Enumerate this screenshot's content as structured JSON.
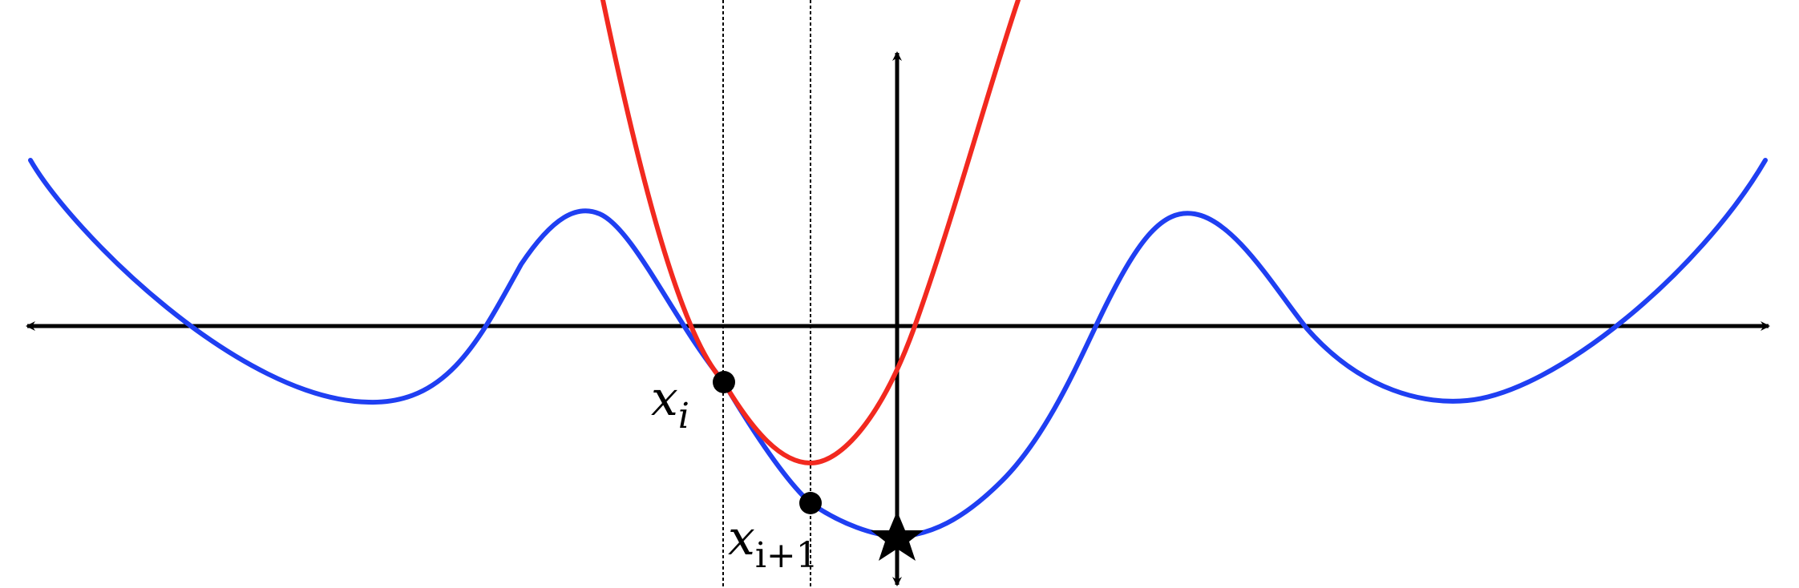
{
  "diagram": {
    "colors": {
      "objective_curve": "#1f3ff2",
      "surrogate_curve": "#f2291f",
      "axes": "#000000",
      "guide_lines": "#000000",
      "points": "#000000"
    },
    "labels": {
      "xi": {
        "base": "x",
        "sub": "i"
      },
      "xi1": {
        "base": "x",
        "sub": "i+1"
      }
    },
    "markers": {
      "minimum": "star-icon"
    }
  }
}
